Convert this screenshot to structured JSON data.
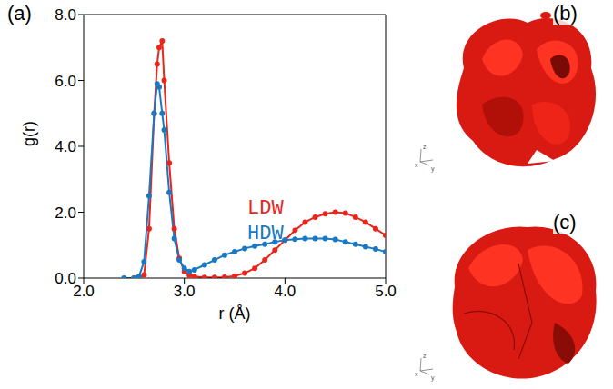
{
  "chart_data": {
    "type": "line",
    "panel_label": "(a)",
    "x_label": "r (Å)",
    "y_label": "g(r)",
    "x": [
      2.4,
      2.5,
      2.55,
      2.6,
      2.65,
      2.7,
      2.73,
      2.75,
      2.78,
      2.8,
      2.85,
      2.9,
      2.95,
      3.0,
      3.05,
      3.1,
      3.2,
      3.3,
      3.4,
      3.5,
      3.6,
      3.7,
      3.8,
      3.9,
      4.0,
      4.1,
      4.2,
      4.3,
      4.4,
      4.5,
      4.6,
      4.7,
      4.8,
      4.9,
      5.0
    ],
    "series": [
      {
        "name": "LDW",
        "color": "#e8261c",
        "marker": "circle",
        "values": [
          null,
          0,
          0,
          0.1,
          1.5,
          5.0,
          6.5,
          7.0,
          7.2,
          6.0,
          3.5,
          1.5,
          0.6,
          0.2,
          0.08,
          0.05,
          0.02,
          0.02,
          0.03,
          0.06,
          0.15,
          0.3,
          0.55,
          0.85,
          1.15,
          1.45,
          1.7,
          1.85,
          1.95,
          2.0,
          1.97,
          1.85,
          1.7,
          1.5,
          1.3
        ]
      },
      {
        "name": "HDW",
        "color": "#1a78c2",
        "marker": "circle",
        "values": [
          0,
          0,
          0.05,
          0.5,
          2.5,
          5.0,
          5.9,
          5.8,
          5.0,
          4.5,
          2.6,
          1.2,
          0.55,
          0.3,
          0.2,
          0.25,
          0.4,
          0.55,
          0.7,
          0.8,
          0.9,
          0.97,
          1.03,
          1.1,
          1.15,
          1.18,
          1.2,
          1.2,
          1.2,
          1.17,
          1.1,
          1.03,
          0.95,
          0.88,
          0.8
        ]
      }
    ],
    "xlim": [
      2,
      5
    ],
    "ylim": [
      0,
      8
    ],
    "xticks": [
      {
        "value": 2,
        "label": "2.0"
      },
      {
        "value": 3,
        "label": "3.0"
      },
      {
        "value": 4,
        "label": "4.0"
      },
      {
        "value": 5,
        "label": "5.0"
      }
    ],
    "yticks": [
      {
        "value": 0,
        "label": "0.0"
      },
      {
        "value": 2,
        "label": "2.0"
      },
      {
        "value": 4,
        "label": "4.0"
      },
      {
        "value": 6,
        "label": "6.0"
      },
      {
        "value": 8,
        "label": "8.0"
      }
    ],
    "legend": "center",
    "grid": false
  },
  "panels": [
    {
      "label": "(b)",
      "axis_labels": [
        "x",
        "y",
        "z"
      ]
    },
    {
      "label": "(c)",
      "axis_labels": [
        "x",
        "y",
        "z"
      ]
    }
  ]
}
